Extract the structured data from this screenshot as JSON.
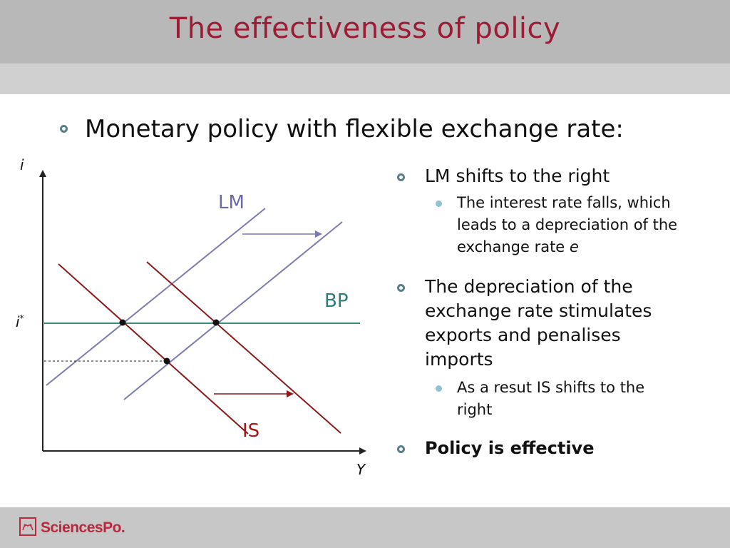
{
  "slide": {
    "title": "The effectiveness of policy",
    "main_bullet": "Monetary policy with flexible exchange rate:"
  },
  "diagram": {
    "y_axis_label": "i",
    "x_axis_label": "Y",
    "i_star_label": "i",
    "i_star_sup": "*",
    "curve_labels": {
      "lm": "LM",
      "bp": "BP",
      "is": "IS"
    },
    "colors": {
      "lm": "#7b7bb0",
      "is": "#8b1a1a",
      "bp": "#3a8a7a",
      "axis": "#222222"
    }
  },
  "bullets": [
    {
      "text": "LM shifts to the right",
      "sub": [
        {
          "text_main": "The interest rate falls, which",
          "text_line2": "leads to a depreciation of the",
          "text_line3": "exchange rate ",
          "text_italic": "e"
        }
      ]
    },
    {
      "line1": "The depreciation of the",
      "line2": "exchange rate stimulates",
      "line3": "exports and penalises",
      "line4": "imports",
      "sub_line1": "As a resut IS shifts to the",
      "sub_line2": "right"
    },
    {
      "text": "Policy is effective"
    }
  ],
  "footer": {
    "logo_text": "SciencesPo."
  }
}
